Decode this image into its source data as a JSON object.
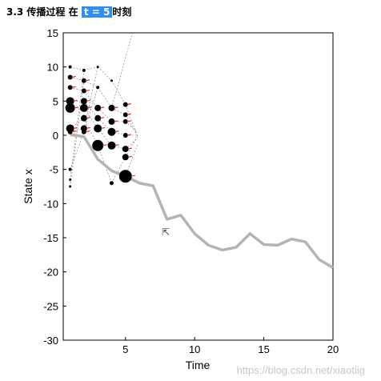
{
  "heading": {
    "prefix": "3.3 传播过程 在",
    "highlight": "t = 5",
    "suffix": "时刻"
  },
  "watermark": "https://blog.csdn.net/xiaotiig",
  "chart_data": {
    "type": "line",
    "xlabel": "Time",
    "ylabel": "State x",
    "xlim": [
      0.5,
      20
    ],
    "ylim": [
      -30,
      15
    ],
    "xticks": [
      5,
      10,
      15,
      20
    ],
    "yticks": [
      15,
      10,
      5,
      0,
      -5,
      -10,
      -15,
      -20,
      -25,
      -30
    ],
    "grid": false,
    "series": [
      {
        "color": "#b4b4b4",
        "x": [
          1,
          2,
          3,
          4,
          5,
          6,
          7,
          8,
          9,
          10,
          11,
          12,
          13,
          14,
          15,
          16,
          17,
          18,
          19,
          20
        ],
        "values": [
          0.1,
          -0.2,
          -3.5,
          -5.2,
          -6,
          -7,
          -7.4,
          -12.3,
          -11.7,
          -14.4,
          -16.1,
          -16.8,
          -16.4,
          -14.4,
          -16,
          -16.1,
          -15.2,
          -15.6,
          -18.2,
          -19.4
        ]
      }
    ],
    "particles": [
      {
        "x": 1,
        "y": 10,
        "s": 2
      },
      {
        "x": 1,
        "y": 8.5,
        "s": 3
      },
      {
        "x": 1,
        "y": 7,
        "s": 3
      },
      {
        "x": 1,
        "y": 5,
        "s": 5
      },
      {
        "x": 1,
        "y": 4,
        "s": 6
      },
      {
        "x": 1,
        "y": 1,
        "s": 5
      },
      {
        "x": 1,
        "y": 0.5,
        "s": 3
      },
      {
        "x": 1,
        "y": -5,
        "s": 2
      },
      {
        "x": 1,
        "y": -6.5,
        "s": 1.5
      },
      {
        "x": 1,
        "y": -7.5,
        "s": 1.5
      },
      {
        "x": 2,
        "y": 9.5,
        "s": 2
      },
      {
        "x": 2,
        "y": 8,
        "s": 3
      },
      {
        "x": 2,
        "y": 6.5,
        "s": 3
      },
      {
        "x": 2,
        "y": 5,
        "s": 4
      },
      {
        "x": 2,
        "y": 4,
        "s": 5
      },
      {
        "x": 2,
        "y": 2.5,
        "s": 4
      },
      {
        "x": 2,
        "y": 1,
        "s": 4
      },
      {
        "x": 2,
        "y": 0.5,
        "s": 3
      },
      {
        "x": 3,
        "y": 10,
        "s": 1.5
      },
      {
        "x": 3,
        "y": 7,
        "s": 2
      },
      {
        "x": 3,
        "y": 4,
        "s": 4
      },
      {
        "x": 3,
        "y": 2.5,
        "s": 4
      },
      {
        "x": 3,
        "y": 1,
        "s": 5
      },
      {
        "x": 3,
        "y": -1.5,
        "s": 7
      },
      {
        "x": 4,
        "y": 8,
        "s": 1.5
      },
      {
        "x": 4,
        "y": 4,
        "s": 4
      },
      {
        "x": 4,
        "y": 2,
        "s": 4
      },
      {
        "x": 4,
        "y": 0.5,
        "s": 5
      },
      {
        "x": 4,
        "y": -1.5,
        "s": 5
      },
      {
        "x": 4,
        "y": -7,
        "s": 2.5
      },
      {
        "x": 5,
        "y": 4.5,
        "s": 3
      },
      {
        "x": 5,
        "y": 3,
        "s": 3
      },
      {
        "x": 5,
        "y": 2,
        "s": 3
      },
      {
        "x": 5,
        "y": 0,
        "s": 3
      },
      {
        "x": 5,
        "y": -2,
        "s": 4
      },
      {
        "x": 5,
        "y": -3.2,
        "s": 4
      },
      {
        "x": 5,
        "y": -6,
        "s": 8
      }
    ]
  }
}
